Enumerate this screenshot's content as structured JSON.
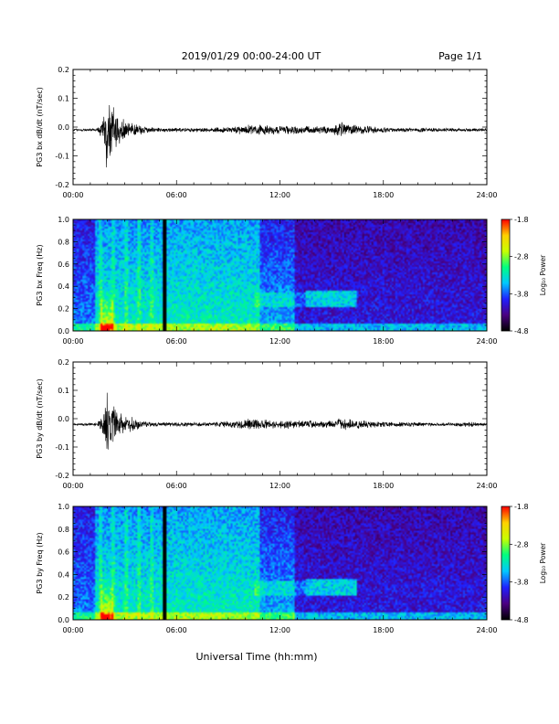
{
  "header": {
    "title": "2019/01/29  00:00-24:00 UT",
    "page": "Page 1/1"
  },
  "x_axis": {
    "label": "Universal Time (hh:mm)",
    "range": [
      0,
      24
    ],
    "ticks": [
      0,
      6,
      12,
      18,
      24
    ],
    "tick_labels": [
      "00:00",
      "06:00",
      "12:00",
      "18:00",
      "24:00"
    ]
  },
  "colorbar": {
    "label": "Log₁₀ Power",
    "range": [
      -4.8,
      -1.8
    ],
    "ticks": [
      -1.8,
      -2.8,
      -3.8,
      -4.8
    ],
    "tick_labels": [
      "-1.8",
      "-2.8",
      "-3.8",
      "-4.8"
    ],
    "colors": [
      "#000000",
      "#4b0082",
      "#2020ff",
      "#00c8ff",
      "#00ff80",
      "#c8ff00",
      "#ffd000",
      "#ff0000"
    ]
  },
  "chart_data": [
    {
      "id": "bx-dbdt",
      "type": "line",
      "ylabel": "PG3 bx dB/dt (nT/sec)",
      "ylim": [
        -0.2,
        0.2
      ],
      "yticks": [
        -0.2,
        -0.1,
        0.0,
        0.1,
        0.2
      ],
      "ytick_labels": [
        "-0.2",
        "-0.1",
        "0.0",
        "0.1",
        "0.2"
      ],
      "baseline": -0.01,
      "envelope": {
        "x": [
          0,
          1.4,
          1.7,
          1.9,
          2.1,
          2.5,
          3.0,
          3.5,
          4.0,
          5.0,
          8.0,
          9.0,
          10.0,
          11.0,
          12.0,
          13.0,
          15.0,
          15.5,
          16.5,
          18.0,
          22.0,
          24.0
        ],
        "y": [
          0.004,
          0.006,
          0.04,
          0.15,
          0.11,
          0.08,
          0.04,
          0.03,
          0.015,
          0.008,
          0.008,
          0.012,
          0.02,
          0.02,
          0.016,
          0.016,
          0.014,
          0.03,
          0.018,
          0.01,
          0.007,
          0.006
        ]
      }
    },
    {
      "id": "bx-spectrogram",
      "type": "heatmap",
      "ylabel": "PG3 bx Freq (Hz)",
      "ylim": [
        0.0,
        1.0
      ],
      "yticks": [
        0.0,
        0.2,
        0.4,
        0.6,
        0.8,
        1.0
      ],
      "ytick_labels": [
        "0.0",
        "0.2",
        "0.4",
        "0.6",
        "0.8",
        "1.0"
      ],
      "zlim": [
        -4.8,
        -1.8
      ],
      "data_gaps_hours": [
        5.25
      ]
    },
    {
      "id": "by-dbdt",
      "type": "line",
      "ylabel": "PG3 by dB/dt (nT/sec)",
      "ylim": [
        -0.2,
        0.2
      ],
      "yticks": [
        -0.2,
        -0.1,
        0.0,
        0.1,
        0.2
      ],
      "ytick_labels": [
        "-0.2",
        "-0.1",
        "0.0",
        "0.1",
        "0.2"
      ],
      "baseline": -0.02,
      "envelope": {
        "x": [
          0,
          1.4,
          1.7,
          1.9,
          2.1,
          2.5,
          3.0,
          3.5,
          4.0,
          5.0,
          8.0,
          9.0,
          10.0,
          11.0,
          12.0,
          13.0,
          15.0,
          15.5,
          16.5,
          18.0,
          22.0,
          23.0,
          24.0
        ],
        "y": [
          0.004,
          0.006,
          0.04,
          0.13,
          0.11,
          0.07,
          0.035,
          0.025,
          0.012,
          0.008,
          0.008,
          0.012,
          0.02,
          0.02,
          0.016,
          0.016,
          0.014,
          0.025,
          0.016,
          0.01,
          0.007,
          0.01,
          0.006
        ]
      }
    },
    {
      "id": "by-spectrogram",
      "type": "heatmap",
      "ylabel": "PG3 by Freq (Hz)",
      "ylim": [
        0.0,
        1.0
      ],
      "yticks": [
        0.0,
        0.2,
        0.4,
        0.6,
        0.8,
        1.0
      ],
      "ytick_labels": [
        "0.0",
        "0.2",
        "0.4",
        "0.6",
        "0.8",
        "1.0"
      ],
      "zlim": [
        -4.8,
        -1.8
      ],
      "data_gaps_hours": [
        5.25
      ]
    }
  ]
}
